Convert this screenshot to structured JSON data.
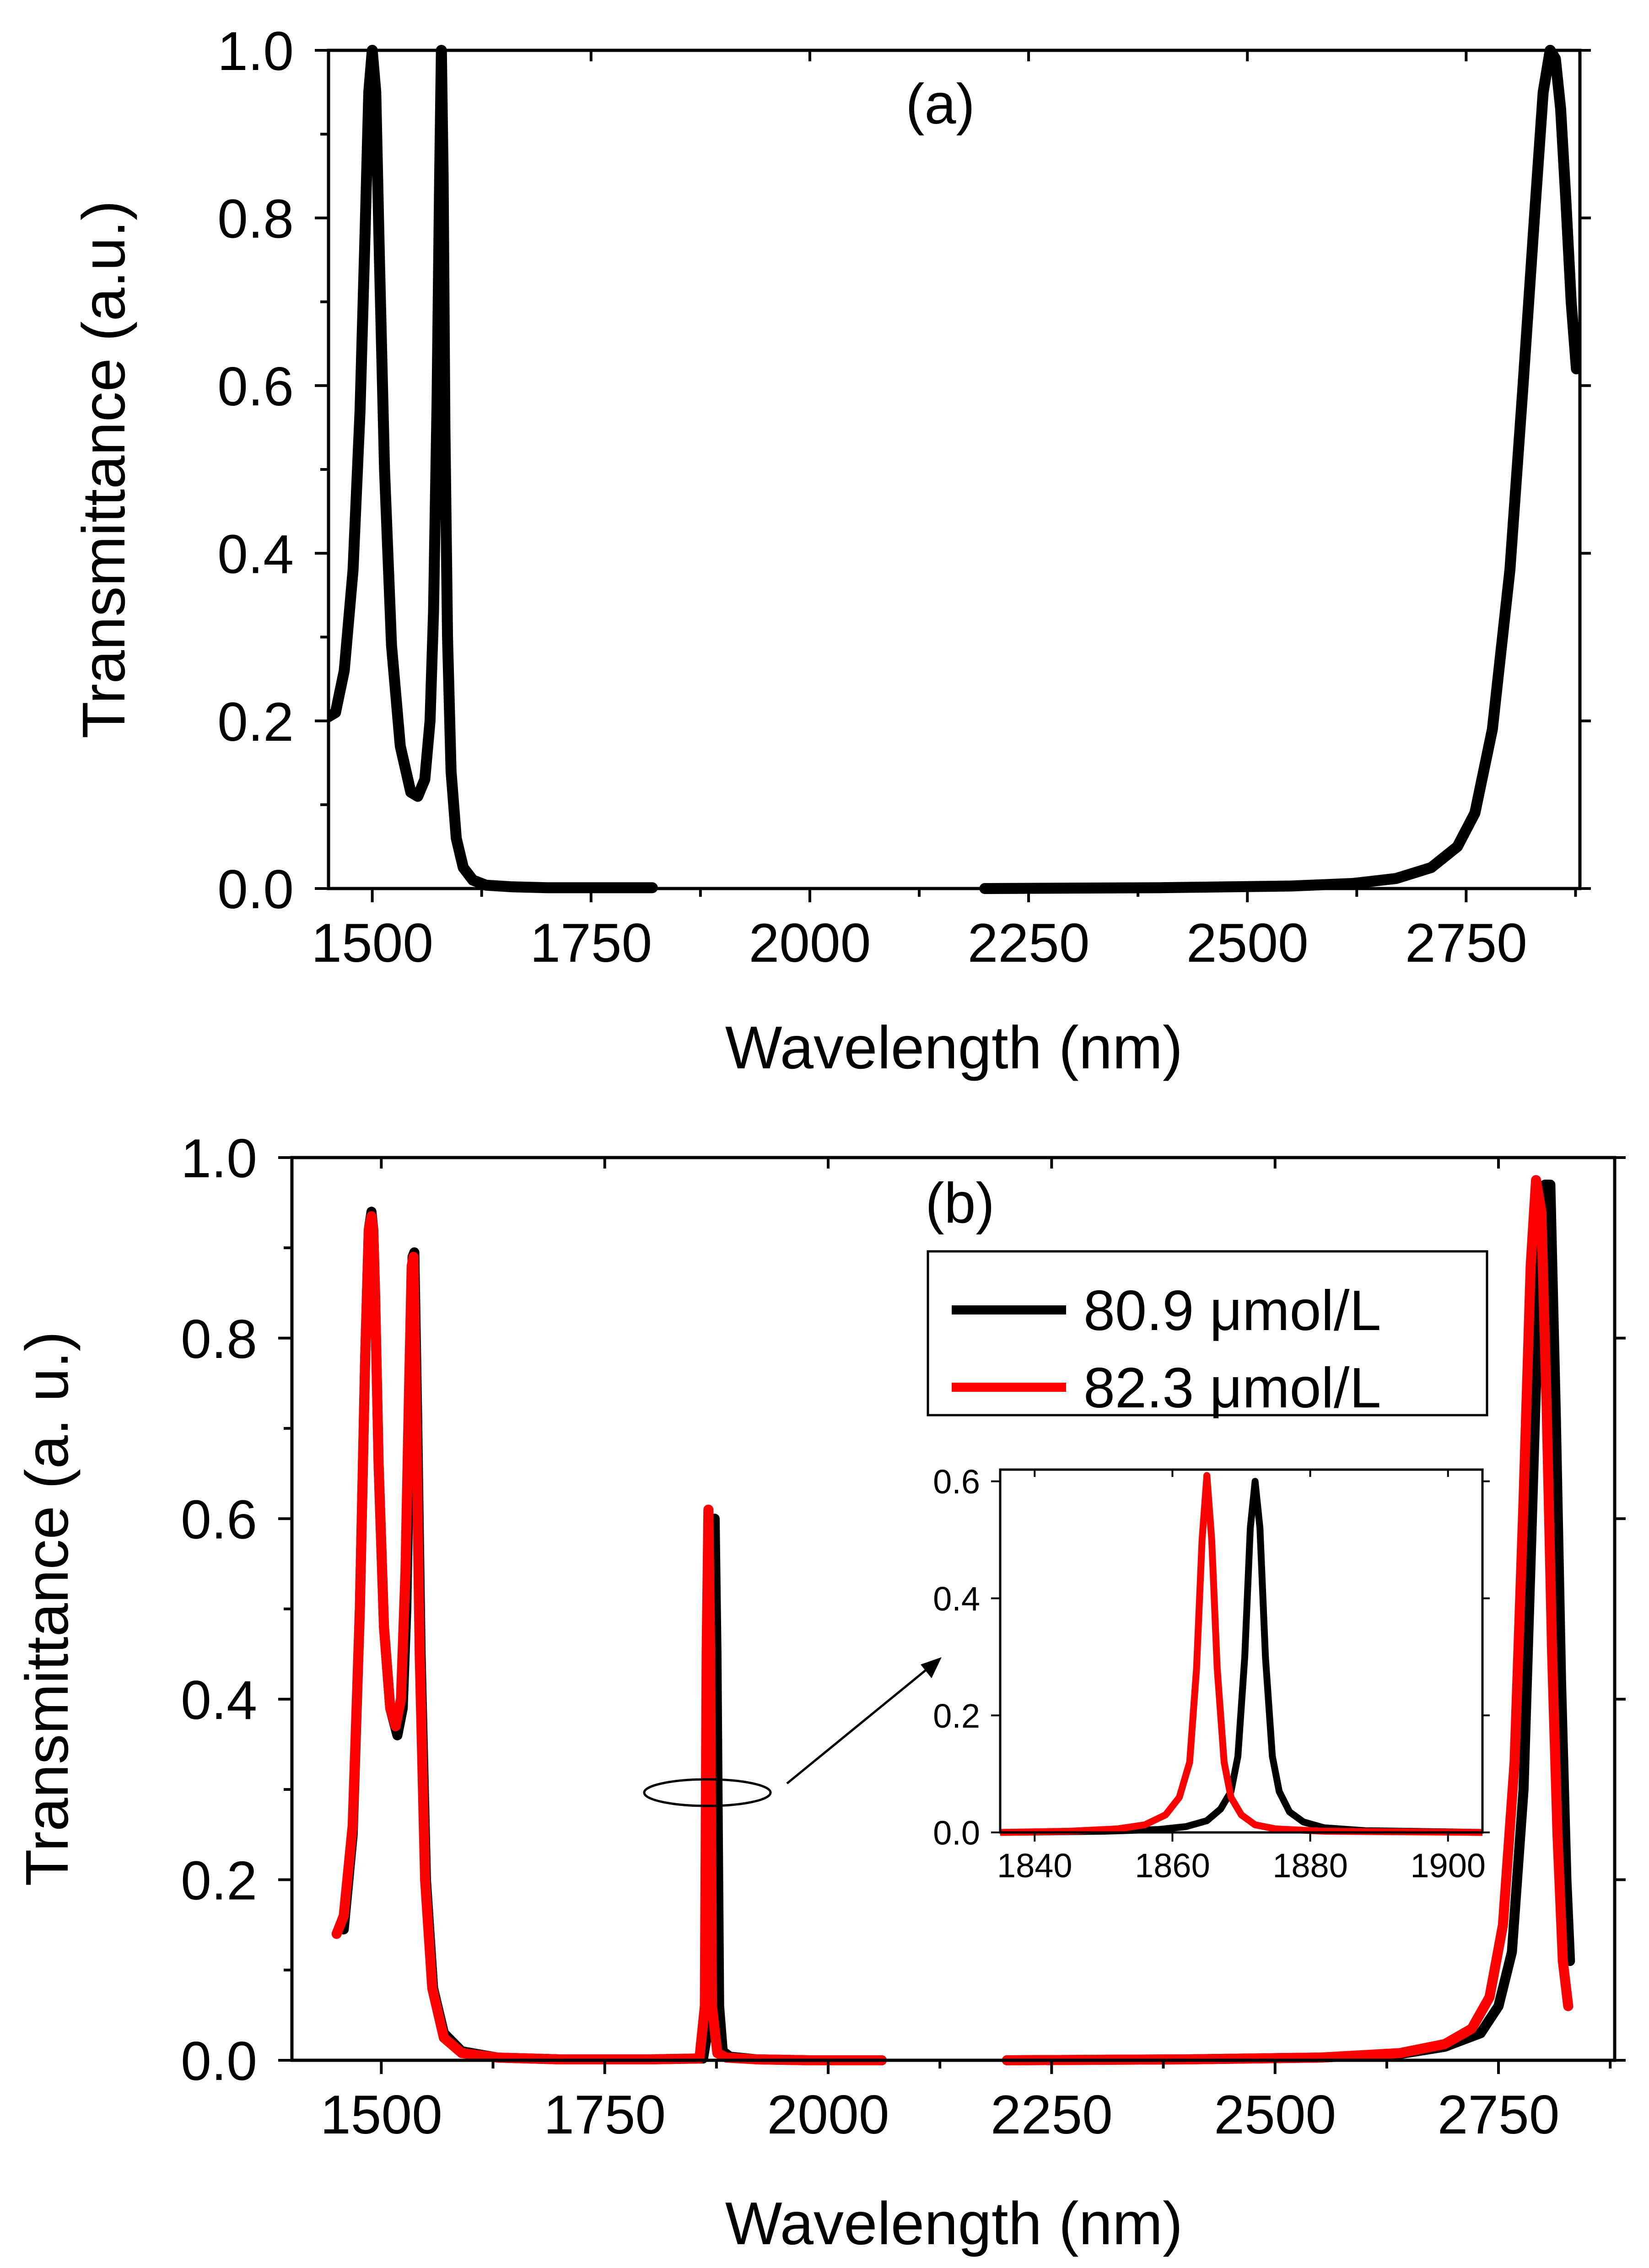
{
  "colors": {
    "series_black": "#000000",
    "series_red": "#ff0000",
    "axes": "#000000",
    "background": "#ffffff"
  },
  "chart_data": [
    {
      "type": "line",
      "panel_label": "(a)",
      "xlabel": "Wavelength (nm)",
      "ylabel": "Transmittance (a.u.)",
      "xlim": [
        1450,
        2880
      ],
      "ylim": [
        0,
        1.0
      ],
      "xticks": [
        1500,
        1750,
        2000,
        2250,
        2500,
        2750
      ],
      "xtick_labels": [
        "1500",
        "1750",
        "2000",
        "2250",
        "2500",
        "2750"
      ],
      "yticks": [
        0,
        0.2,
        0.4,
        0.6,
        0.8,
        1.0
      ],
      "ytick_labels": [
        "0.0",
        "0.2",
        "0.4",
        "0.6",
        "0.8",
        "1.0"
      ],
      "legend": null,
      "series": [
        {
          "name": "transmittance",
          "color": "#000000",
          "segments": [
            {
              "x": [
                1450,
                1458,
                1468,
                1478,
                1486,
                1492,
                1496,
                1500,
                1504,
                1508,
                1514,
                1522,
                1532,
                1544,
                1552,
                1560,
                1566,
                1570,
                1574,
                1577,
                1579,
                1581,
                1583,
                1586,
                1590,
                1596,
                1604,
                1615,
                1630,
                1660,
                1700,
                1760,
                1820
              ],
              "y": [
                0.205,
                0.21,
                0.26,
                0.38,
                0.57,
                0.79,
                0.95,
                1.0,
                0.95,
                0.76,
                0.5,
                0.29,
                0.17,
                0.115,
                0.11,
                0.13,
                0.2,
                0.33,
                0.58,
                0.85,
                1.0,
                0.85,
                0.55,
                0.3,
                0.14,
                0.06,
                0.025,
                0.01,
                0.004,
                0.002,
                0.001,
                0.001,
                0.001
              ]
            },
            {
              "x": [
                2200,
                2400,
                2550,
                2620,
                2670,
                2710,
                2740,
                2760,
                2780,
                2800,
                2815,
                2828,
                2838,
                2846,
                2852,
                2858,
                2864,
                2870,
                2876
              ],
              "y": [
                0.0,
                0.001,
                0.003,
                0.006,
                0.012,
                0.025,
                0.05,
                0.09,
                0.19,
                0.38,
                0.6,
                0.8,
                0.95,
                1.0,
                0.99,
                0.93,
                0.82,
                0.7,
                0.62
              ]
            }
          ]
        }
      ]
    },
    {
      "type": "line",
      "panel_label": "(b)",
      "xlabel": "Wavelength (nm)",
      "ylabel": "Transmittance (a. u.)",
      "xlim": [
        1400,
        2880
      ],
      "ylim": [
        0,
        1.0
      ],
      "xticks": [
        1500,
        1750,
        2000,
        2250,
        2500,
        2750
      ],
      "xtick_labels": [
        "1500",
        "1750",
        "2000",
        "2250",
        "2500",
        "2750"
      ],
      "yticks": [
        0,
        0.2,
        0.4,
        0.6,
        0.8,
        1.0
      ],
      "ytick_labels": [
        "0.0",
        "0.2",
        "0.4",
        "0.6",
        "0.8",
        "1.0"
      ],
      "legend": {
        "position": "top-right",
        "entries": [
          "80.9 μmol/L",
          "82.3 μmol/L"
        ]
      },
      "series": [
        {
          "name": "80.9 μmol/L",
          "color": "#000000",
          "segments": [
            {
              "x": [
                1458,
                1468,
                1476,
                1482,
                1486,
                1489,
                1491,
                1493,
                1497,
                1503,
                1510,
                1518,
                1524,
                1528,
                1532,
                1535,
                1537,
                1540,
                1544,
                1550,
                1558,
                1570,
                1590,
                1630,
                1700,
                1800,
                1860,
                1868,
                1871,
                1873,
                1875,
                1878,
                1882,
                1890,
                1920,
                1980,
                2060
              ],
              "y": [
                0.145,
                0.25,
                0.5,
                0.78,
                0.92,
                0.94,
                0.92,
                0.85,
                0.66,
                0.48,
                0.39,
                0.36,
                0.39,
                0.5,
                0.72,
                0.89,
                0.895,
                0.72,
                0.45,
                0.2,
                0.08,
                0.03,
                0.01,
                0.003,
                0.001,
                0.001,
                0.002,
                0.05,
                0.45,
                0.6,
                0.45,
                0.06,
                0.01,
                0.004,
                0.001,
                0.0,
                0.0
              ]
            },
            {
              "x": [
                2200,
                2400,
                2550,
                2640,
                2690,
                2730,
                2750,
                2765,
                2778,
                2788,
                2796,
                2802,
                2808,
                2814,
                2820,
                2826,
                2830
              ],
              "y": [
                0.0,
                0.001,
                0.003,
                0.007,
                0.015,
                0.03,
                0.06,
                0.12,
                0.3,
                0.62,
                0.88,
                0.97,
                0.97,
                0.72,
                0.42,
                0.2,
                0.11
              ]
            }
          ]
        },
        {
          "name": "82.3 μmol/L",
          "color": "#ff0000",
          "segments": [
            {
              "x": [
                1450,
                1458,
                1468,
                1476,
                1482,
                1486,
                1489,
                1491,
                1493,
                1497,
                1503,
                1510,
                1516,
                1522,
                1527,
                1531,
                1534,
                1536,
                1539,
                1543,
                1549,
                1557,
                1570,
                1590,
                1630,
                1700,
                1800,
                1856,
                1862,
                1864,
                1866,
                1868,
                1870,
                1876,
                1886,
                1920,
                1980,
                2060
              ],
              "y": [
                0.14,
                0.16,
                0.26,
                0.5,
                0.78,
                0.92,
                0.935,
                0.92,
                0.85,
                0.66,
                0.48,
                0.39,
                0.37,
                0.4,
                0.54,
                0.74,
                0.88,
                0.89,
                0.72,
                0.45,
                0.2,
                0.08,
                0.025,
                0.008,
                0.003,
                0.001,
                0.001,
                0.002,
                0.06,
                0.45,
                0.61,
                0.45,
                0.06,
                0.008,
                0.003,
                0.001,
                0.0,
                0.0
              ]
            },
            {
              "x": [
                2200,
                2400,
                2550,
                2640,
                2690,
                2720,
                2740,
                2755,
                2768,
                2778,
                2786,
                2792,
                2798,
                2804,
                2810,
                2816,
                2822,
                2828
              ],
              "y": [
                0.0,
                0.001,
                0.003,
                0.008,
                0.018,
                0.035,
                0.07,
                0.15,
                0.33,
                0.62,
                0.88,
                0.975,
                0.94,
                0.72,
                0.45,
                0.25,
                0.11,
                0.06
              ]
            }
          ]
        }
      ]
    },
    {
      "type": "line",
      "panel_label": "",
      "role": "inset of panel (b)",
      "xlim": [
        1835,
        1905
      ],
      "ylim": [
        0,
        0.62
      ],
      "xticks": [
        1840,
        1860,
        1880,
        1900
      ],
      "xtick_labels": [
        "1840",
        "1860",
        "1880",
        "1900"
      ],
      "yticks": [
        0,
        0.2,
        0.4,
        0.6
      ],
      "ytick_labels": [
        "0.0",
        "0.2",
        "0.4",
        "0.6"
      ],
      "series": [
        {
          "name": "80.9 μmol/L",
          "color": "#000000",
          "segments": [
            {
              "x": [
                1835,
                1850,
                1858,
                1862,
                1865,
                1867,
                1868.5,
                1869.5,
                1870.5,
                1871.3,
                1872,
                1872.7,
                1873.5,
                1874.5,
                1875.5,
                1877,
                1879,
                1882,
                1888,
                1905
              ],
              "y": [
                0.0,
                0.002,
                0.005,
                0.01,
                0.02,
                0.04,
                0.07,
                0.13,
                0.3,
                0.52,
                0.6,
                0.52,
                0.3,
                0.13,
                0.07,
                0.035,
                0.018,
                0.008,
                0.003,
                0.0
              ]
            }
          ]
        },
        {
          "name": "82.3 μmol/L",
          "color": "#ff0000",
          "segments": [
            {
              "x": [
                1835,
                1845,
                1852,
                1856,
                1859,
                1861,
                1862.5,
                1863.5,
                1864.3,
                1865,
                1865.7,
                1866.5,
                1867.5,
                1868.5,
                1870,
                1872,
                1875,
                1882,
                1905
              ],
              "y": [
                0.0,
                0.002,
                0.006,
                0.013,
                0.03,
                0.06,
                0.12,
                0.28,
                0.5,
                0.61,
                0.5,
                0.28,
                0.12,
                0.06,
                0.03,
                0.013,
                0.006,
                0.002,
                0.0
              ]
            }
          ]
        }
      ]
    }
  ]
}
